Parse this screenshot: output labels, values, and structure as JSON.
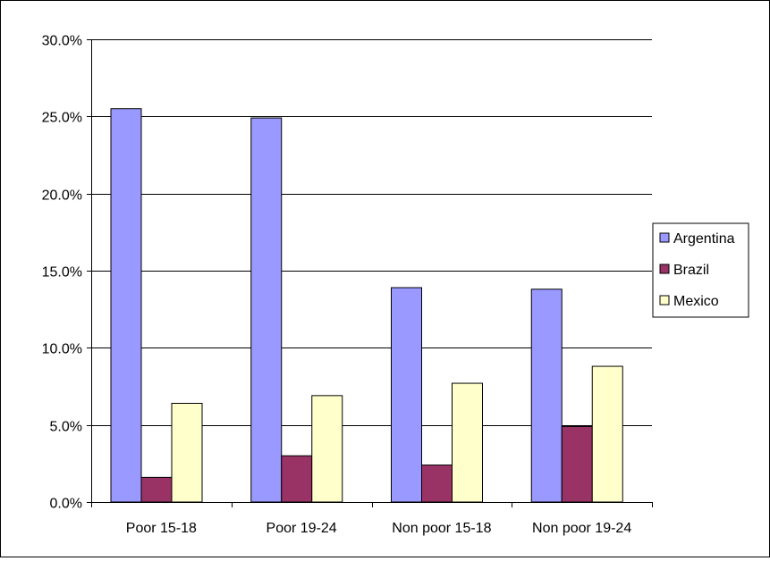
{
  "chart_data": {
    "type": "bar",
    "categories": [
      "Poor 15-18",
      "Poor 19-24",
      "Non poor 15-18",
      "Non poor 19-24"
    ],
    "series": [
      {
        "name": "Argentina",
        "values": [
          25.5,
          24.9,
          13.9,
          13.8
        ],
        "color": "#9999ff"
      },
      {
        "name": "Brazil",
        "values": [
          1.6,
          3.0,
          2.4,
          4.9
        ],
        "color": "#993366"
      },
      {
        "name": "Mexico",
        "values": [
          6.4,
          6.9,
          7.7,
          8.8
        ],
        "color": "#ffffcc"
      }
    ],
    "ylim": [
      0,
      30
    ],
    "y_ticks": [
      "0.0%",
      "5.0%",
      "10.0%",
      "15.0%",
      "20.0%",
      "25.0%",
      "30.0%"
    ],
    "y_tick_values": [
      0,
      5,
      10,
      15,
      20,
      25,
      30
    ],
    "grid": true,
    "legend_position": "right"
  }
}
